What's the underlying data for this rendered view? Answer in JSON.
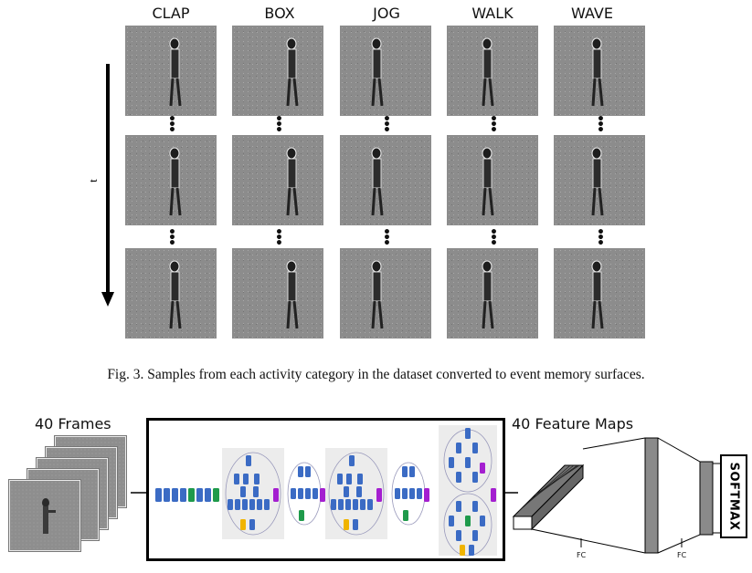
{
  "columns": [
    "CLAP",
    "BOX",
    "JOG",
    "WALK",
    "WAVE"
  ],
  "time_axis_label": "t",
  "caption": "Fig. 3.   Samples from each activity category in the dataset converted to event memory surfaces.",
  "frames_label": "40 Frames",
  "feature_maps_label": "40 Feature Maps",
  "softmax_label": "SOFTMAX",
  "fc_labels": [
    "FC",
    "FC"
  ],
  "colors": {
    "block_blue": "#3b6bc4",
    "block_green": "#1f9a4b",
    "block_purple": "#a41fd0",
    "block_yellow": "#f0b400",
    "tile_gray": "#8c8c8c"
  }
}
